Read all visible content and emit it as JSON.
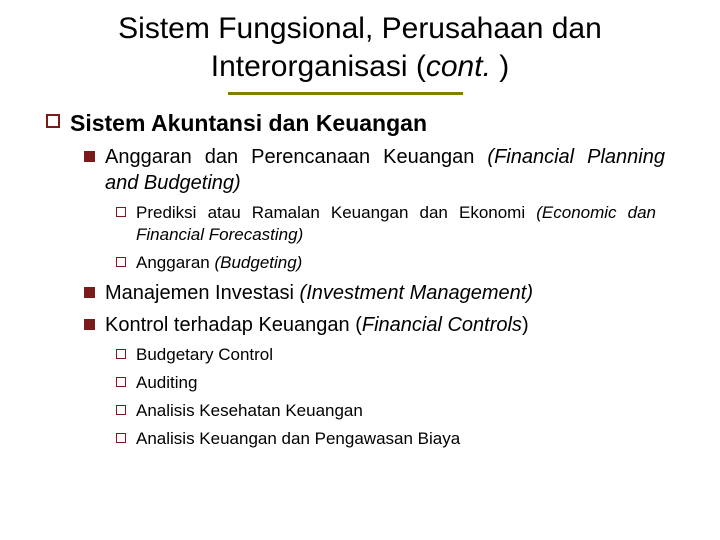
{
  "title": {
    "line1": "Sistem Fungsional, Perusahaan dan",
    "line2_prefix": "Interorganisasi (",
    "line2_italic": "cont.",
    "line2_suffix": " )"
  },
  "colors": {
    "bullet": "#7a1a1a",
    "underline": "#808000",
    "text": "#000000",
    "background": "#ffffff"
  },
  "content": {
    "h1": "Sistem Akuntansi dan Keuangan",
    "items": [
      {
        "plain": "Anggaran dan Perencanaan Keuangan ",
        "italic": "(Financial Planning and Budgeting)",
        "children": [
          {
            "plain": "Prediksi atau Ramalan Keuangan dan Ekonomi ",
            "italic": "(Economic dan Financial Forecasting)"
          },
          {
            "plain": "Anggaran ",
            "italic": "(Budgeting)"
          }
        ]
      },
      {
        "plain": "Manajemen Investasi ",
        "italic": "(Investment Management)"
      },
      {
        "plain": "Kontrol terhadap Keuangan (",
        "italic": "Financial Controls",
        "suffix": ")",
        "children": [
          {
            "plain": "Budgetary Control"
          },
          {
            "plain": "Auditing"
          },
          {
            "plain": "Analisis Kesehatan Keuangan"
          },
          {
            "plain": "Analisis Keuangan dan Pengawasan Biaya"
          }
        ]
      }
    ]
  },
  "typography": {
    "title_fontsize": 30,
    "l1_fontsize": 23,
    "l2_fontsize": 20,
    "l3_fontsize": 17,
    "font_family": "Verdana"
  }
}
